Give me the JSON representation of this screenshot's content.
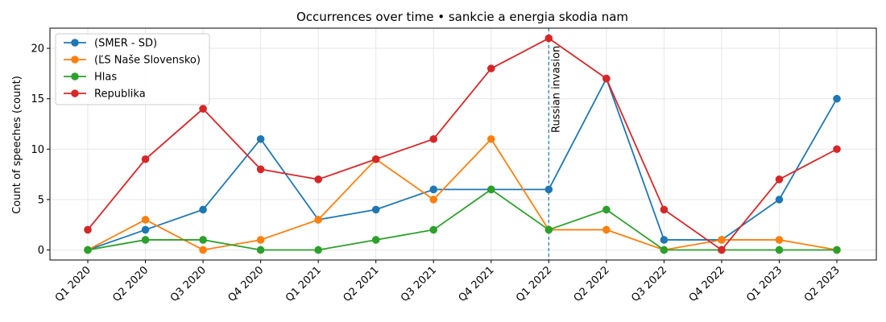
{
  "chart_data": {
    "type": "line",
    "title": "Occurrences over time • sankcie a energia skodia nam",
    "xlabel": "",
    "ylabel": "Count of speeches (count)",
    "categories": [
      "Q1 2020",
      "Q2 2020",
      "Q3 2020",
      "Q4 2020",
      "Q1 2021",
      "Q2 2021",
      "Q3 2021",
      "Q4 2021",
      "Q1 2022",
      "Q2 2022",
      "Q3 2022",
      "Q4 2022",
      "Q1 2023",
      "Q2 2023"
    ],
    "ylim": [
      -1,
      22
    ],
    "yticks": [
      0,
      5,
      10,
      15,
      20
    ],
    "grid": true,
    "legend_position": "top-left",
    "series": [
      {
        "name": "(SMER - SD)",
        "color": "#1f77b4",
        "values": [
          0,
          2,
          4,
          11,
          3,
          4,
          6,
          6,
          6,
          17,
          1,
          1,
          5,
          15
        ]
      },
      {
        "name": "(ĽS Naše Slovensko)",
        "color": "#ff7f0e",
        "values": [
          0,
          3,
          0,
          1,
          3,
          9,
          5,
          11,
          2,
          2,
          0,
          1,
          1,
          0
        ]
      },
      {
        "name": "Hlas",
        "color": "#2ca02c",
        "values": [
          0,
          1,
          1,
          0,
          0,
          1,
          2,
          6,
          2,
          4,
          0,
          0,
          0,
          0
        ]
      },
      {
        "name": "Republika",
        "color": "#d62728",
        "values": [
          2,
          9,
          14,
          8,
          7,
          9,
          11,
          18,
          21,
          17,
          4,
          0,
          7,
          10
        ]
      }
    ],
    "annotations": [
      {
        "text": "Russian invasion",
        "x": "Q1 2022",
        "style": "dashed vertical line",
        "color": "#1f77b4"
      }
    ]
  }
}
